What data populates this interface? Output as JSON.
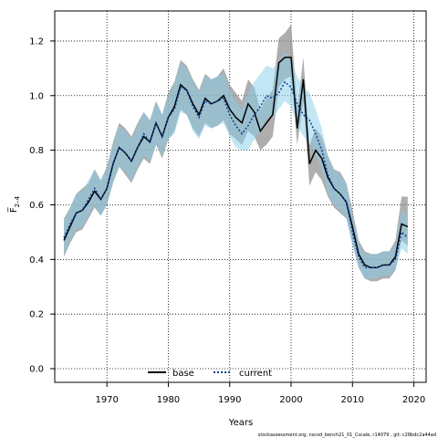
{
  "chart_data": {
    "type": "line",
    "xlabel": "Years",
    "ylabel": "F̅",
    "ylabel_subscript": "2–4",
    "xlim": [
      1961.5,
      2022
    ],
    "ylim": [
      -0.05,
      1.31
    ],
    "x_ticks": [
      1970,
      1980,
      1990,
      2000,
      2010,
      2020
    ],
    "y_ticks": [
      0.0,
      0.2,
      0.4,
      0.6,
      0.8,
      1.0,
      1.2
    ],
    "y_tick_labels": [
      "0.0",
      "0.2",
      "0.4",
      "0.6",
      "0.8",
      "1.0",
      "1.2"
    ],
    "grid": true,
    "legend_position": "bottom-center",
    "years": [
      1963,
      1964,
      1965,
      1966,
      1967,
      1968,
      1969,
      1970,
      1971,
      1972,
      1973,
      1974,
      1975,
      1976,
      1977,
      1978,
      1979,
      1980,
      1981,
      1982,
      1983,
      1984,
      1985,
      1986,
      1987,
      1988,
      1989,
      1990,
      1991,
      1992,
      1993,
      1994,
      1995,
      1996,
      1997,
      1998,
      1999,
      2000,
      2001,
      2002,
      2003,
      2004,
      2005,
      2006,
      2007,
      2008,
      2009,
      2010,
      2011,
      2012,
      2013,
      2014,
      2015,
      2016,
      2017,
      2018,
      2019
    ],
    "series": [
      {
        "name": "base",
        "color": "#000000",
        "band_color": "#8c8c8c",
        "values": [
          0.47,
          0.52,
          0.57,
          0.58,
          0.61,
          0.65,
          0.62,
          0.66,
          0.75,
          0.81,
          0.79,
          0.76,
          0.81,
          0.85,
          0.83,
          0.9,
          0.85,
          0.92,
          0.96,
          1.04,
          1.02,
          0.97,
          0.93,
          0.99,
          0.97,
          0.98,
          1.0,
          0.95,
          0.92,
          0.9,
          0.97,
          0.94,
          0.87,
          0.9,
          0.93,
          1.12,
          1.14,
          1.14,
          0.88,
          1.06,
          0.75,
          0.8,
          0.77,
          0.7,
          0.66,
          0.64,
          0.61,
          0.52,
          0.42,
          0.38,
          0.37,
          0.37,
          0.38,
          0.38,
          0.41,
          0.53,
          0.52
        ],
        "lower": [
          0.41,
          0.46,
          0.5,
          0.51,
          0.55,
          0.59,
          0.56,
          0.6,
          0.68,
          0.74,
          0.71,
          0.68,
          0.73,
          0.77,
          0.75,
          0.82,
          0.77,
          0.84,
          0.87,
          0.95,
          0.93,
          0.88,
          0.85,
          0.9,
          0.88,
          0.89,
          0.91,
          0.86,
          0.84,
          0.82,
          0.87,
          0.85,
          0.8,
          0.82,
          0.85,
          1.03,
          1.06,
          1.07,
          0.82,
          0.98,
          0.67,
          0.72,
          0.69,
          0.63,
          0.59,
          0.57,
          0.55,
          0.46,
          0.37,
          0.33,
          0.32,
          0.32,
          0.33,
          0.33,
          0.36,
          0.47,
          0.45
        ],
        "upper": [
          0.55,
          0.59,
          0.64,
          0.66,
          0.68,
          0.73,
          0.69,
          0.74,
          0.83,
          0.9,
          0.88,
          0.85,
          0.9,
          0.94,
          0.91,
          0.98,
          0.93,
          1.01,
          1.05,
          1.13,
          1.11,
          1.06,
          1.02,
          1.08,
          1.06,
          1.07,
          1.1,
          1.04,
          1.01,
          0.98,
          1.06,
          1.03,
          0.95,
          0.99,
          1.02,
          1.21,
          1.23,
          1.26,
          0.95,
          1.14,
          0.82,
          0.88,
          0.85,
          0.78,
          0.73,
          0.72,
          0.68,
          0.58,
          0.47,
          0.43,
          0.42,
          0.42,
          0.43,
          0.43,
          0.47,
          0.63,
          0.63
        ]
      },
      {
        "name": "current",
        "color": "#0b3d91",
        "band_color": "#87ceeb",
        "values": [
          0.48,
          0.53,
          0.57,
          0.58,
          0.62,
          0.66,
          0.62,
          0.66,
          0.75,
          0.81,
          0.79,
          0.76,
          0.81,
          0.86,
          0.83,
          0.9,
          0.85,
          0.92,
          0.95,
          1.03,
          1.02,
          0.96,
          0.92,
          0.98,
          0.97,
          0.98,
          0.99,
          0.93,
          0.89,
          0.86,
          0.89,
          0.93,
          0.96,
          1.0,
          0.99,
          1.01,
          1.05,
          1.03,
          0.97,
          0.93,
          0.91,
          0.86,
          0.8,
          0.71,
          0.66,
          0.64,
          0.61,
          0.5,
          0.41,
          0.37,
          0.37,
          0.37,
          0.38,
          0.38,
          0.4,
          0.5,
          0.48
        ],
        "lower": [
          0.42,
          0.47,
          0.51,
          0.52,
          0.56,
          0.6,
          0.56,
          0.6,
          0.68,
          0.74,
          0.72,
          0.69,
          0.74,
          0.78,
          0.76,
          0.82,
          0.78,
          0.84,
          0.86,
          0.94,
          0.93,
          0.87,
          0.84,
          0.89,
          0.88,
          0.89,
          0.9,
          0.85,
          0.81,
          0.8,
          0.8,
          0.84,
          0.87,
          0.92,
          0.92,
          0.95,
          0.98,
          0.96,
          0.89,
          0.85,
          0.83,
          0.78,
          0.73,
          0.64,
          0.6,
          0.58,
          0.55,
          0.45,
          0.37,
          0.33,
          0.33,
          0.33,
          0.34,
          0.34,
          0.36,
          0.44,
          0.42
        ],
        "upper": [
          0.54,
          0.59,
          0.64,
          0.65,
          0.69,
          0.73,
          0.69,
          0.73,
          0.82,
          0.89,
          0.87,
          0.84,
          0.89,
          0.94,
          0.91,
          0.98,
          0.93,
          1.0,
          1.04,
          1.12,
          1.1,
          1.05,
          1.01,
          1.07,
          1.06,
          1.07,
          1.08,
          1.02,
          0.98,
          0.95,
          1.01,
          1.05,
          1.08,
          1.11,
          1.1,
          1.12,
          1.16,
          1.13,
          1.07,
          1.03,
          1.01,
          0.95,
          0.88,
          0.78,
          0.73,
          0.71,
          0.68,
          0.56,
          0.46,
          0.42,
          0.42,
          0.42,
          0.43,
          0.43,
          0.45,
          0.58,
          0.56
        ]
      }
    ]
  },
  "legend": {
    "base_label": "base",
    "current_label": "current"
  },
  "footer": {
    "note": "stockassessment.org, nscod_bench21_01_Cscale, r14079 , git: c28bdc2a44ad"
  }
}
